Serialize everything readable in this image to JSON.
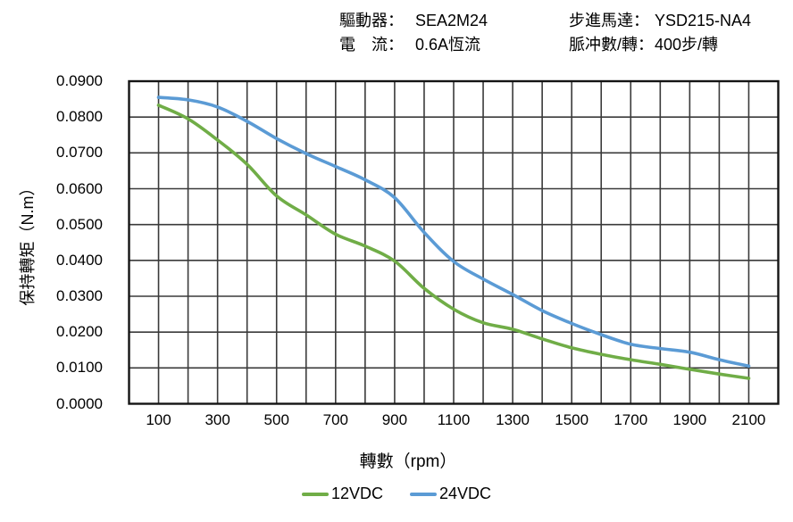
{
  "header": {
    "items": [
      {
        "label": "驅動器：",
        "value": "SEA2M24"
      },
      {
        "label": "步進馬達：",
        "value": "YSD215-NA4"
      },
      {
        "label": "電　流：",
        "value": "0.6A恆流"
      },
      {
        "label": "脈冲數/轉：",
        "value": "400步/轉"
      }
    ]
  },
  "chart_data": {
    "type": "line",
    "x": [
      100,
      200,
      300,
      400,
      500,
      600,
      700,
      800,
      900,
      1000,
      1100,
      1200,
      1300,
      1400,
      1500,
      1600,
      1700,
      1800,
      1900,
      2000,
      2100
    ],
    "series": [
      {
        "name": "12VDC",
        "color": "#70AD47",
        "values": [
          0.0833,
          0.0795,
          0.0736,
          0.0668,
          0.058,
          0.0527,
          0.0473,
          0.044,
          0.0398,
          0.0322,
          0.0264,
          0.0226,
          0.0208,
          0.0181,
          0.0156,
          0.0138,
          0.0123,
          0.011,
          0.0096,
          0.0083,
          0.0071
        ]
      },
      {
        "name": "24VDC",
        "color": "#5B9BD5",
        "values": [
          0.0855,
          0.0848,
          0.0828,
          0.0788,
          0.074,
          0.0698,
          0.0662,
          0.0625,
          0.0575,
          0.0478,
          0.0397,
          0.0348,
          0.0305,
          0.026,
          0.0224,
          0.0193,
          0.0166,
          0.0154,
          0.0144,
          0.0123,
          0.0105
        ]
      }
    ],
    "title": "",
    "xlabel": "轉數（rpm）",
    "ylabel": "保持轉矩（N.m）",
    "xlim": [
      0,
      2200
    ],
    "ylim": [
      0,
      0.09
    ],
    "x_gridline_step": 100,
    "y_gridline_step": 0.01,
    "x_tick_labels": [
      "100",
      "300",
      "500",
      "700",
      "900",
      "1100",
      "1300",
      "1500",
      "1700",
      "1900",
      "2100"
    ],
    "y_tick_labels": [
      "0.0000",
      "0.0100",
      "0.0200",
      "0.0300",
      "0.0400",
      "0.0500",
      "0.0600",
      "0.0700",
      "0.0800",
      "0.0900"
    ],
    "grid": "on",
    "legend_position": "bottom",
    "colors": {
      "gridline": "#3a3a3a",
      "border": "#141414",
      "text": "#000000"
    }
  }
}
